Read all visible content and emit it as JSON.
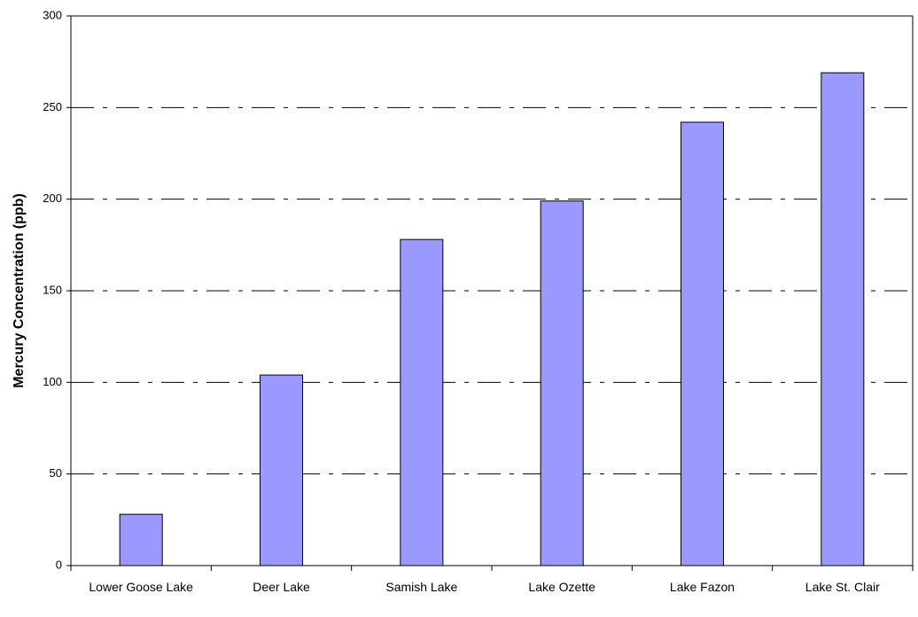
{
  "chart_data": {
    "type": "bar",
    "y_label": "Mercury Concentration (ppb)",
    "categories": [
      "Lower Goose Lake",
      "Deer Lake",
      "Samish Lake",
      "Lake Ozette",
      "Lake Fazon",
      "Lake St. Clair"
    ],
    "values": [
      28,
      104,
      178,
      199,
      242,
      269
    ],
    "color": "#9999ff",
    "ylim": [
      0,
      300
    ],
    "yticks": [
      0,
      50,
      100,
      150,
      200,
      250,
      300
    ],
    "grid": true
  }
}
